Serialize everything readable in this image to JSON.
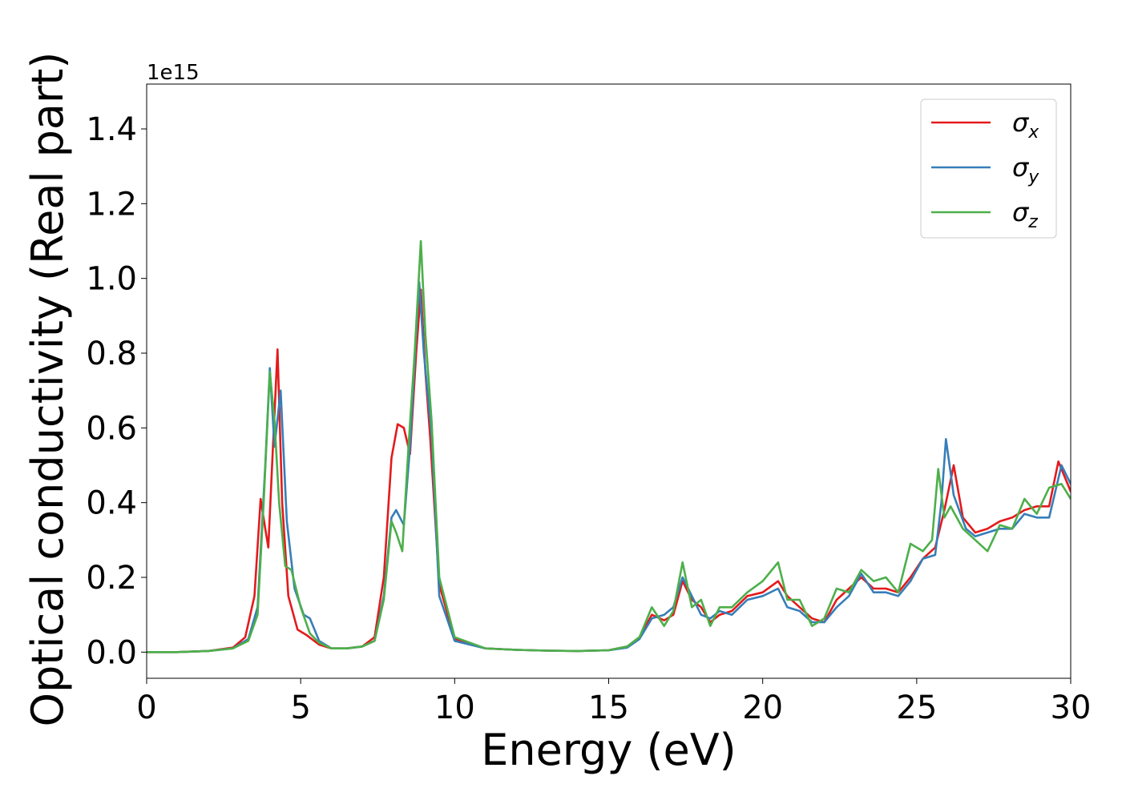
{
  "chart_data": {
    "type": "line",
    "title": "",
    "xlabel": "Energy (eV)",
    "ylabel": "Optical conductivity (Real part)",
    "y_offset_label": "1e15",
    "xlim": [
      0,
      30
    ],
    "ylim": [
      -0.07,
      1.52
    ],
    "x_ticks": [
      0,
      5,
      10,
      15,
      20,
      25,
      30
    ],
    "y_ticks": [
      0.0,
      0.2,
      0.4,
      0.6,
      0.8,
      1.0,
      1.2,
      1.4
    ],
    "x_tick_labels": [
      "0",
      "5",
      "10",
      "15",
      "20",
      "25",
      "30"
    ],
    "y_tick_labels": [
      "0.0",
      "0.2",
      "0.4",
      "0.6",
      "0.8",
      "1.0",
      "1.2",
      "1.4"
    ],
    "grid": false,
    "legend_position": "top-right",
    "series": [
      {
        "name": "σx",
        "name_base": "σ",
        "name_sub": "x",
        "color": "#e41a1c",
        "points": [
          [
            0,
            0.0
          ],
          [
            1,
            0.0
          ],
          [
            2,
            0.003
          ],
          [
            2.8,
            0.012
          ],
          [
            3.2,
            0.04
          ],
          [
            3.5,
            0.15
          ],
          [
            3.7,
            0.41
          ],
          [
            3.85,
            0.33
          ],
          [
            3.95,
            0.28
          ],
          [
            4.1,
            0.55
          ],
          [
            4.25,
            0.81
          ],
          [
            4.4,
            0.4
          ],
          [
            4.6,
            0.15
          ],
          [
            4.9,
            0.06
          ],
          [
            5.2,
            0.045
          ],
          [
            5.6,
            0.02
          ],
          [
            6,
            0.01
          ],
          [
            6.5,
            0.01
          ],
          [
            7,
            0.015
          ],
          [
            7.4,
            0.04
          ],
          [
            7.7,
            0.2
          ],
          [
            7.95,
            0.52
          ],
          [
            8.15,
            0.61
          ],
          [
            8.35,
            0.6
          ],
          [
            8.55,
            0.53
          ],
          [
            8.75,
            0.8
          ],
          [
            8.9,
            0.97
          ],
          [
            9.05,
            0.75
          ],
          [
            9.2,
            0.58
          ],
          [
            9.5,
            0.18
          ],
          [
            10,
            0.035
          ],
          [
            11,
            0.01
          ],
          [
            12,
            0.006
          ],
          [
            13,
            0.004
          ],
          [
            14,
            0.003
          ],
          [
            15,
            0.005
          ],
          [
            15.6,
            0.015
          ],
          [
            16,
            0.04
          ],
          [
            16.4,
            0.1
          ],
          [
            16.8,
            0.085
          ],
          [
            17.1,
            0.1
          ],
          [
            17.4,
            0.19
          ],
          [
            17.7,
            0.14
          ],
          [
            18.0,
            0.12
          ],
          [
            18.3,
            0.08
          ],
          [
            18.6,
            0.1
          ],
          [
            19.0,
            0.11
          ],
          [
            19.5,
            0.15
          ],
          [
            20.0,
            0.16
          ],
          [
            20.5,
            0.19
          ],
          [
            20.8,
            0.15
          ],
          [
            21.2,
            0.12
          ],
          [
            21.6,
            0.09
          ],
          [
            22.0,
            0.08
          ],
          [
            22.4,
            0.14
          ],
          [
            22.8,
            0.17
          ],
          [
            23.2,
            0.2
          ],
          [
            23.6,
            0.17
          ],
          [
            24.0,
            0.17
          ],
          [
            24.4,
            0.16
          ],
          [
            24.8,
            0.2
          ],
          [
            25.2,
            0.25
          ],
          [
            25.6,
            0.28
          ],
          [
            25.9,
            0.38
          ],
          [
            26.2,
            0.5
          ],
          [
            26.5,
            0.36
          ],
          [
            26.9,
            0.32
          ],
          [
            27.3,
            0.33
          ],
          [
            27.7,
            0.35
          ],
          [
            28.1,
            0.36
          ],
          [
            28.5,
            0.38
          ],
          [
            28.9,
            0.39
          ],
          [
            29.3,
            0.39
          ],
          [
            29.6,
            0.51
          ],
          [
            30,
            0.43
          ]
        ]
      },
      {
        "name": "σy",
        "name_base": "σ",
        "name_sub": "y",
        "color": "#377eb8",
        "points": [
          [
            0,
            0.0
          ],
          [
            1,
            0.0
          ],
          [
            2,
            0.003
          ],
          [
            2.8,
            0.01
          ],
          [
            3.3,
            0.035
          ],
          [
            3.6,
            0.12
          ],
          [
            3.85,
            0.5
          ],
          [
            4.0,
            0.76
          ],
          [
            4.15,
            0.55
          ],
          [
            4.35,
            0.7
          ],
          [
            4.55,
            0.35
          ],
          [
            4.8,
            0.17
          ],
          [
            5.1,
            0.1
          ],
          [
            5.3,
            0.09
          ],
          [
            5.6,
            0.03
          ],
          [
            6,
            0.01
          ],
          [
            6.5,
            0.01
          ],
          [
            7,
            0.015
          ],
          [
            7.4,
            0.03
          ],
          [
            7.7,
            0.15
          ],
          [
            7.95,
            0.36
          ],
          [
            8.1,
            0.38
          ],
          [
            8.35,
            0.34
          ],
          [
            8.55,
            0.55
          ],
          [
            8.75,
            0.85
          ],
          [
            8.85,
            0.99
          ],
          [
            9.0,
            0.8
          ],
          [
            9.25,
            0.58
          ],
          [
            9.5,
            0.15
          ],
          [
            10,
            0.03
          ],
          [
            11,
            0.01
          ],
          [
            12,
            0.006
          ],
          [
            13,
            0.004
          ],
          [
            14,
            0.003
          ],
          [
            15,
            0.005
          ],
          [
            15.6,
            0.012
          ],
          [
            16,
            0.035
          ],
          [
            16.4,
            0.09
          ],
          [
            16.8,
            0.1
          ],
          [
            17.1,
            0.12
          ],
          [
            17.4,
            0.2
          ],
          [
            17.7,
            0.15
          ],
          [
            18.0,
            0.1
          ],
          [
            18.3,
            0.09
          ],
          [
            18.6,
            0.11
          ],
          [
            19.0,
            0.1
          ],
          [
            19.5,
            0.14
          ],
          [
            20.0,
            0.15
          ],
          [
            20.5,
            0.17
          ],
          [
            20.8,
            0.12
          ],
          [
            21.2,
            0.11
          ],
          [
            21.6,
            0.08
          ],
          [
            22.0,
            0.08
          ],
          [
            22.4,
            0.12
          ],
          [
            22.8,
            0.15
          ],
          [
            23.2,
            0.21
          ],
          [
            23.6,
            0.16
          ],
          [
            24.0,
            0.16
          ],
          [
            24.4,
            0.15
          ],
          [
            24.8,
            0.19
          ],
          [
            25.2,
            0.25
          ],
          [
            25.6,
            0.26
          ],
          [
            25.8,
            0.4
          ],
          [
            25.95,
            0.57
          ],
          [
            26.2,
            0.42
          ],
          [
            26.6,
            0.33
          ],
          [
            26.9,
            0.31
          ],
          [
            27.3,
            0.32
          ],
          [
            27.7,
            0.33
          ],
          [
            28.1,
            0.33
          ],
          [
            28.5,
            0.37
          ],
          [
            28.9,
            0.36
          ],
          [
            29.3,
            0.36
          ],
          [
            29.7,
            0.5
          ],
          [
            30,
            0.45
          ]
        ]
      },
      {
        "name": "σz",
        "name_base": "σ",
        "name_sub": "z",
        "color": "#4daf4a",
        "points": [
          [
            0,
            0.0
          ],
          [
            1,
            0.0
          ],
          [
            2,
            0.003
          ],
          [
            2.8,
            0.01
          ],
          [
            3.3,
            0.03
          ],
          [
            3.6,
            0.1
          ],
          [
            3.8,
            0.4
          ],
          [
            4.0,
            0.75
          ],
          [
            4.15,
            0.62
          ],
          [
            4.3,
            0.4
          ],
          [
            4.5,
            0.23
          ],
          [
            4.7,
            0.22
          ],
          [
            5.0,
            0.12
          ],
          [
            5.3,
            0.05
          ],
          [
            5.6,
            0.025
          ],
          [
            6,
            0.01
          ],
          [
            6.5,
            0.01
          ],
          [
            7,
            0.015
          ],
          [
            7.4,
            0.03
          ],
          [
            7.7,
            0.14
          ],
          [
            7.95,
            0.35
          ],
          [
            8.1,
            0.32
          ],
          [
            8.3,
            0.27
          ],
          [
            8.5,
            0.55
          ],
          [
            8.7,
            0.8
          ],
          [
            8.9,
            1.1
          ],
          [
            9.05,
            0.85
          ],
          [
            9.25,
            0.62
          ],
          [
            9.5,
            0.2
          ],
          [
            10,
            0.04
          ],
          [
            11,
            0.01
          ],
          [
            12,
            0.006
          ],
          [
            13,
            0.004
          ],
          [
            14,
            0.003
          ],
          [
            15,
            0.005
          ],
          [
            15.6,
            0.015
          ],
          [
            16,
            0.04
          ],
          [
            16.4,
            0.12
          ],
          [
            16.8,
            0.07
          ],
          [
            17.1,
            0.11
          ],
          [
            17.4,
            0.24
          ],
          [
            17.7,
            0.12
          ],
          [
            18.0,
            0.14
          ],
          [
            18.3,
            0.07
          ],
          [
            18.6,
            0.12
          ],
          [
            19.0,
            0.12
          ],
          [
            19.5,
            0.16
          ],
          [
            20.0,
            0.19
          ],
          [
            20.5,
            0.24
          ],
          [
            20.8,
            0.14
          ],
          [
            21.2,
            0.14
          ],
          [
            21.6,
            0.07
          ],
          [
            22.0,
            0.09
          ],
          [
            22.4,
            0.17
          ],
          [
            22.8,
            0.16
          ],
          [
            23.2,
            0.22
          ],
          [
            23.6,
            0.19
          ],
          [
            24.0,
            0.2
          ],
          [
            24.4,
            0.16
          ],
          [
            24.8,
            0.29
          ],
          [
            25.2,
            0.27
          ],
          [
            25.5,
            0.3
          ],
          [
            25.7,
            0.49
          ],
          [
            25.9,
            0.36
          ],
          [
            26.1,
            0.39
          ],
          [
            26.5,
            0.33
          ],
          [
            26.9,
            0.3
          ],
          [
            27.3,
            0.27
          ],
          [
            27.7,
            0.34
          ],
          [
            28.1,
            0.33
          ],
          [
            28.5,
            0.41
          ],
          [
            28.9,
            0.37
          ],
          [
            29.3,
            0.44
          ],
          [
            29.7,
            0.45
          ],
          [
            30,
            0.41
          ]
        ]
      }
    ]
  }
}
